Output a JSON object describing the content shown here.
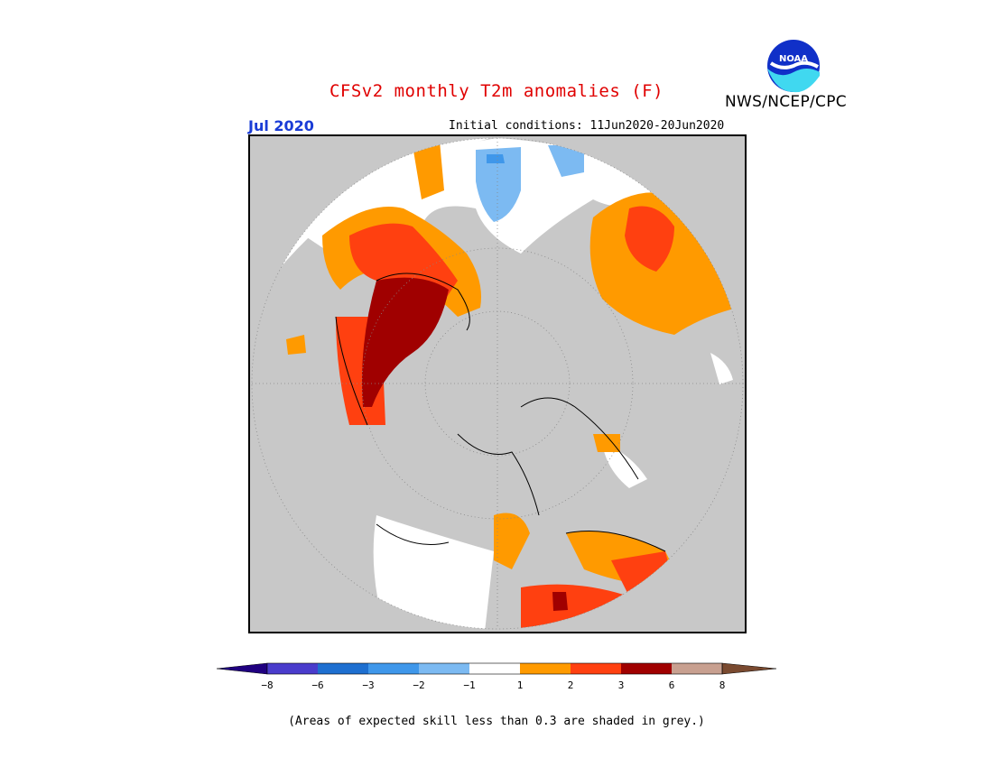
{
  "header": {
    "title": "CFSv2 monthly T2m anomalies (F)",
    "title_color": "#e00000",
    "month": "Jul 2020",
    "month_color": "#1a3cd6",
    "initial_conditions": "Initial conditions: 11Jun2020-20Jun2020",
    "agency": "NWS/NCEP/CPC",
    "logo_text": "NOAA"
  },
  "colorbar": {
    "ticks": [
      "−8",
      "−6",
      "−3",
      "−2",
      "−1",
      "1",
      "2",
      "3",
      "6",
      "8"
    ],
    "colors": [
      "#200080",
      "#4a3ccc",
      "#1e6fd0",
      "#3f97ea",
      "#7cbaf2",
      "#ffffff",
      "#ff9a00",
      "#ff4010",
      "#a00000",
      "#c8a090",
      "#7a4a30"
    ]
  },
  "map": {
    "projection": "polar-stereographic",
    "missing_color": "#c8c8c8",
    "ocean_land_color": "#ffffff"
  },
  "footer": {
    "note": "(Areas of expected skill less than 0.3 are shaded in grey.)"
  }
}
